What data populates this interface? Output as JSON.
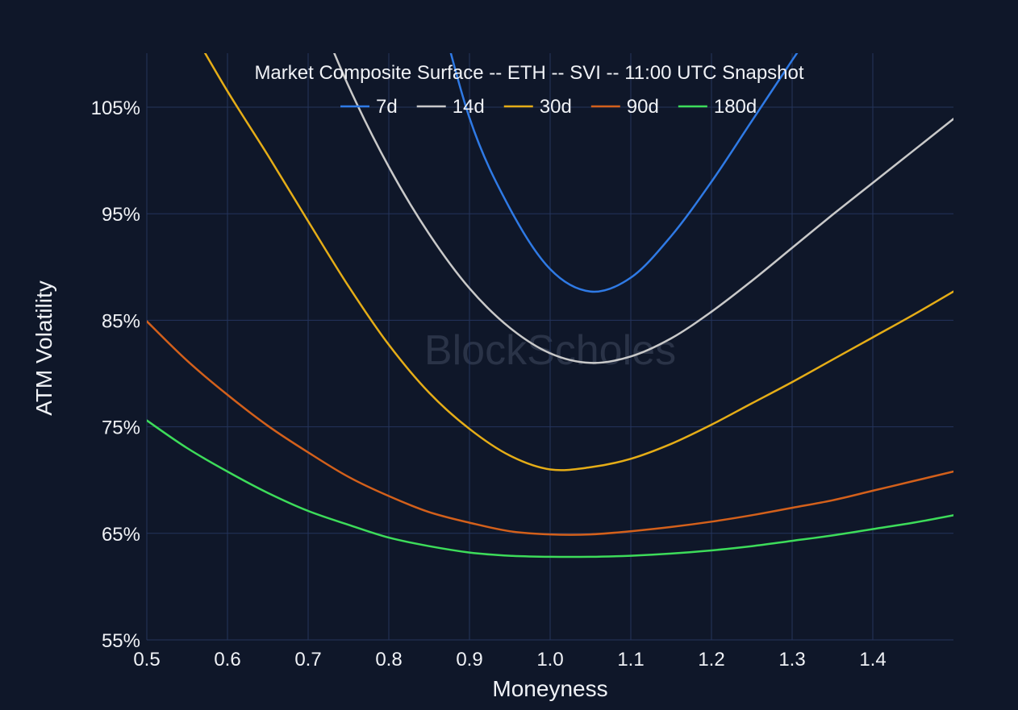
{
  "chart_data": {
    "type": "line",
    "title": "Market Composite Surface -- ETH -- SVI -- 11:00 UTC Snapshot",
    "xlabel": "Moneyness",
    "ylabel": "ATM Volatility",
    "watermark": "BlockScholes",
    "xlim": [
      0.5,
      1.5
    ],
    "ylim": [
      55,
      105
    ],
    "x_ticks": [
      0.5,
      0.6,
      0.7,
      0.8,
      0.9,
      1.0,
      1.1,
      1.2,
      1.3,
      1.4
    ],
    "x_tick_labels": [
      "0.5",
      "0.6",
      "0.7",
      "0.8",
      "0.9",
      "1.0",
      "1.1",
      "1.2",
      "1.3",
      "1.4"
    ],
    "y_ticks": [
      55,
      65,
      75,
      85,
      95,
      105
    ],
    "y_tick_labels": [
      "55%",
      "65%",
      "75%",
      "85%",
      "95%",
      "105%"
    ],
    "grid": true,
    "legend_position": "top-center",
    "series": [
      {
        "name": "7d",
        "color": "#2f7ae5",
        "x": [
          0.85,
          0.9,
          0.95,
          1.0,
          1.05,
          1.1,
          1.15,
          1.2,
          1.25,
          1.3,
          1.35
        ],
        "y": [
          118.0,
          104.0,
          95.5,
          89.8,
          87.7,
          89.0,
          92.9,
          98.0,
          103.7,
          109.4,
          115.0
        ]
      },
      {
        "name": "14d",
        "color": "#c9c9c9",
        "x": [
          0.7,
          0.75,
          0.8,
          0.85,
          0.9,
          0.95,
          1.0,
          1.05,
          1.1,
          1.15,
          1.2,
          1.25,
          1.3,
          1.35,
          1.4,
          1.45,
          1.5
        ],
        "y": [
          116.0,
          107.0,
          99.4,
          93.1,
          88.0,
          84.3,
          81.9,
          81.0,
          81.6,
          83.3,
          85.8,
          88.7,
          91.8,
          94.9,
          97.9,
          100.9,
          103.9
        ]
      },
      {
        "name": "30d",
        "color": "#e5ad17",
        "x": [
          0.55,
          0.6,
          0.65,
          0.7,
          0.75,
          0.8,
          0.85,
          0.9,
          0.95,
          1.0,
          1.05,
          1.1,
          1.15,
          1.2,
          1.25,
          1.3,
          1.35,
          1.4,
          1.45,
          1.5
        ],
        "y": [
          113.0,
          106.5,
          100.5,
          94.3,
          88.2,
          82.7,
          78.2,
          74.8,
          72.3,
          71.0,
          71.2,
          72.0,
          73.4,
          75.2,
          77.2,
          79.2,
          81.3,
          83.4,
          85.5,
          87.7
        ]
      },
      {
        "name": "90d",
        "color": "#d3601b",
        "x": [
          0.5,
          0.55,
          0.6,
          0.65,
          0.7,
          0.75,
          0.8,
          0.85,
          0.9,
          0.95,
          1.0,
          1.05,
          1.1,
          1.15,
          1.2,
          1.25,
          1.3,
          1.35,
          1.4,
          1.45,
          1.5
        ],
        "y": [
          84.9,
          81.2,
          78.0,
          75.1,
          72.6,
          70.3,
          68.5,
          67.0,
          66.0,
          65.2,
          64.9,
          64.9,
          65.2,
          65.6,
          66.1,
          66.7,
          67.4,
          68.1,
          69.0,
          69.9,
          70.8
        ]
      },
      {
        "name": "180d",
        "color": "#3ddc5a",
        "x": [
          0.5,
          0.55,
          0.6,
          0.65,
          0.7,
          0.75,
          0.8,
          0.85,
          0.9,
          0.95,
          1.0,
          1.05,
          1.1,
          1.15,
          1.2,
          1.25,
          1.3,
          1.35,
          1.4,
          1.45,
          1.5
        ],
        "y": [
          75.6,
          73.0,
          70.8,
          68.8,
          67.1,
          65.8,
          64.6,
          63.8,
          63.2,
          62.9,
          62.8,
          62.8,
          62.9,
          63.1,
          63.4,
          63.8,
          64.3,
          64.8,
          65.4,
          66.0,
          66.7
        ]
      }
    ]
  }
}
